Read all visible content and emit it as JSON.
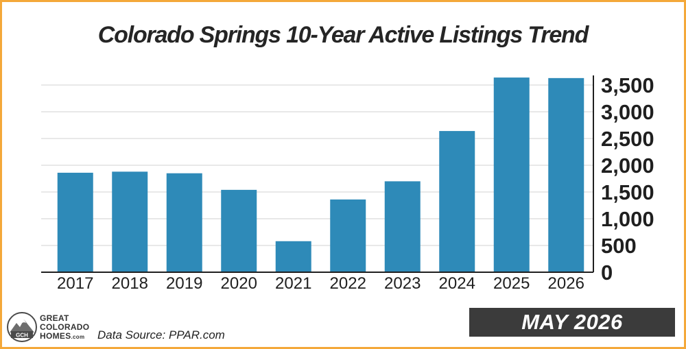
{
  "chart_data": {
    "type": "bar",
    "title": "Colorado Springs 10-Year Active Listings Trend",
    "xlabel": "",
    "ylabel": "",
    "categories": [
      "2017",
      "2018",
      "2019",
      "2020",
      "2021",
      "2022",
      "2023",
      "2024",
      "2025",
      "2026"
    ],
    "values": [
      1860,
      1880,
      1850,
      1540,
      580,
      1360,
      1700,
      2640,
      3640,
      3630
    ],
    "ylim": [
      0,
      3500
    ],
    "yticks": [
      0,
      500,
      1000,
      1500,
      2000,
      2500,
      3000,
      3500
    ],
    "ytick_labels": [
      "0",
      "500",
      "1,000",
      "1,500",
      "2,000",
      "2,500",
      "3,000",
      "3,500"
    ],
    "y_axis_side": "right",
    "grid": true,
    "legend": "none",
    "bar_color": "#2e8ab8"
  },
  "footer": {
    "logo_lines": [
      "GREAT",
      "COLORADO",
      "HOMES"
    ],
    "logo_suffix": ".com",
    "logo_badge_text": "GCH",
    "source": "Data Source: PPAR.com",
    "date": "MAY 2026"
  },
  "colors": {
    "frame": "#f4a83a",
    "bars": "#2e8ab8",
    "badge_bg": "#3b3b3b"
  }
}
